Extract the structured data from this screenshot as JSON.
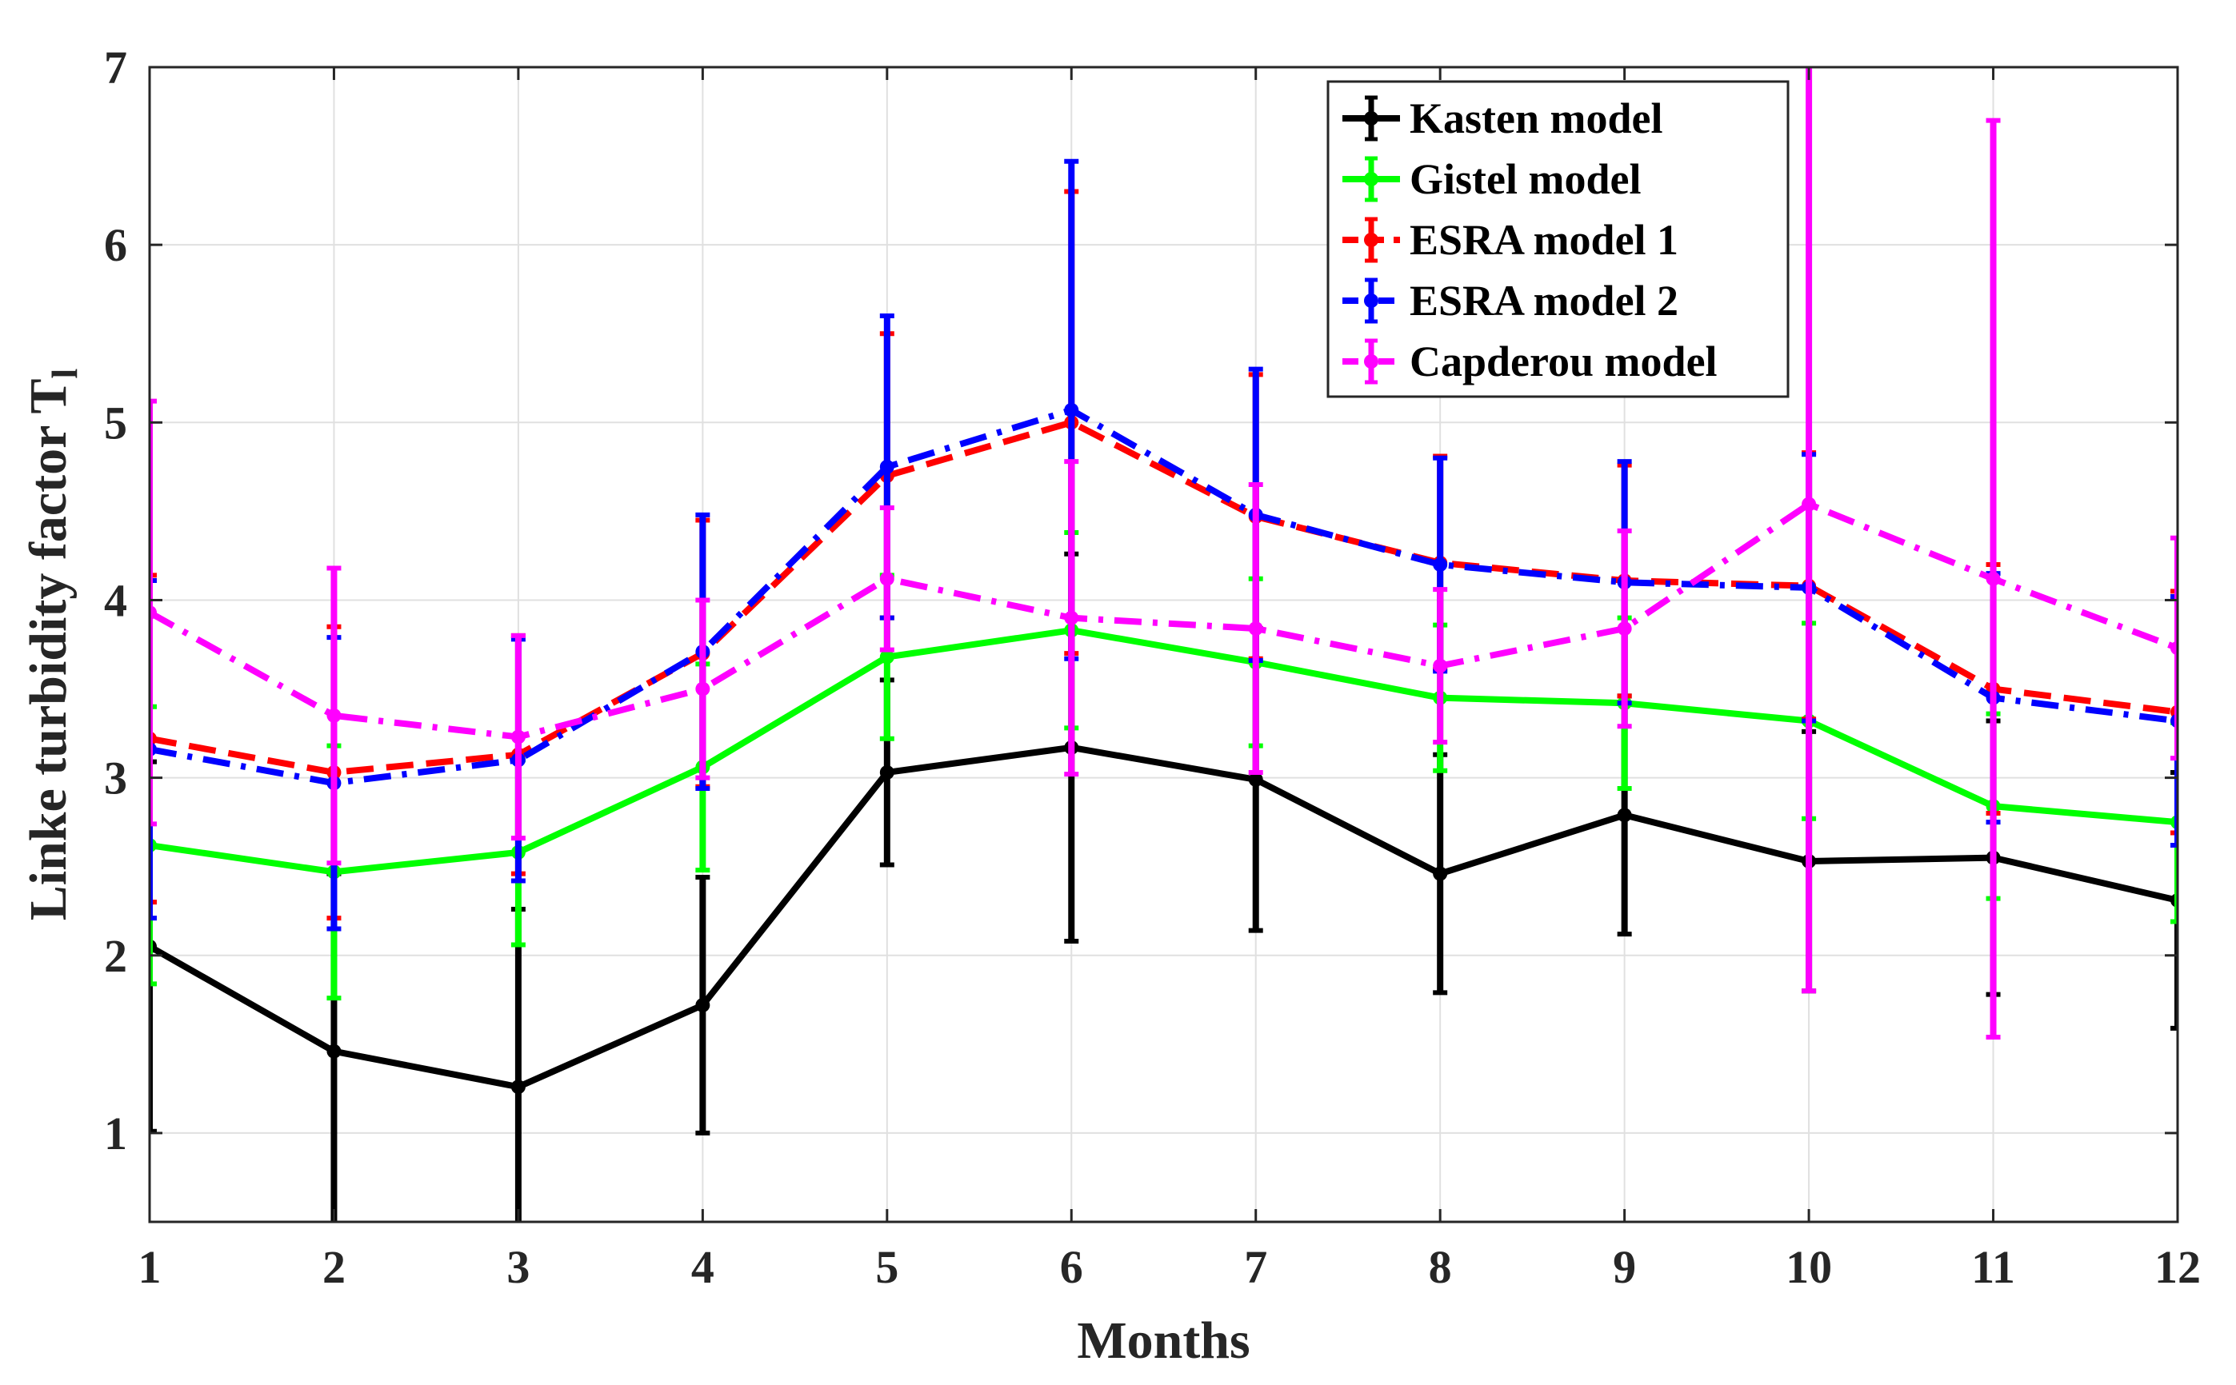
{
  "chart_data": {
    "type": "line",
    "xlabel": "Months",
    "ylabel": "Linke turbidity factor T",
    "ylabel_subscript": "l",
    "x": [
      1,
      2,
      3,
      4,
      5,
      6,
      7,
      8,
      9,
      10,
      11,
      12
    ],
    "xlim": [
      1,
      12
    ],
    "ylim": [
      0.5,
      7
    ],
    "yticks": [
      1,
      2,
      3,
      4,
      5,
      6,
      7
    ],
    "grid": true,
    "legend_position": "top-right",
    "series": [
      {
        "name": "Kasten model",
        "color": "#000000",
        "line_style": "solid",
        "values": [
          2.05,
          1.46,
          1.26,
          1.72,
          3.03,
          3.17,
          2.99,
          2.46,
          2.79,
          2.53,
          2.55,
          2.31
        ],
        "error": [
          1.04,
          1.0,
          1.0,
          0.72,
          0.52,
          1.09,
          0.85,
          0.67,
          0.67,
          0.73,
          0.77,
          0.72
        ]
      },
      {
        "name": "Gistel model",
        "color": "#00ff00",
        "line_style": "solid",
        "values": [
          2.62,
          2.47,
          2.58,
          3.06,
          3.68,
          3.83,
          3.65,
          3.45,
          3.42,
          3.32,
          2.84,
          2.75
        ],
        "error": [
          0.78,
          0.71,
          0.52,
          0.58,
          0.46,
          0.55,
          0.47,
          0.41,
          0.48,
          0.55,
          0.52,
          0.56
        ]
      },
      {
        "name": "ESRA model 1",
        "color": "#ff0000",
        "line_style": "dashed",
        "values": [
          3.22,
          3.03,
          3.13,
          3.7,
          4.7,
          5.0,
          4.47,
          4.21,
          4.11,
          4.08,
          3.5,
          3.37
        ],
        "error": [
          0.92,
          0.82,
          0.67,
          0.75,
          0.8,
          1.3,
          0.8,
          0.6,
          0.65,
          0.75,
          0.7,
          0.68
        ]
      },
      {
        "name": "ESRA model 2",
        "color": "#0000ff",
        "line_style": "dashdot",
        "values": [
          3.16,
          2.97,
          3.1,
          3.71,
          4.75,
          5.07,
          4.48,
          4.2,
          4.1,
          4.07,
          3.45,
          3.32
        ],
        "error": [
          0.95,
          0.82,
          0.68,
          0.77,
          0.85,
          1.4,
          0.82,
          0.6,
          0.68,
          0.75,
          0.7,
          0.7
        ]
      },
      {
        "name": "Capderou model",
        "color": "#ff00ff",
        "line_style": "dashdot",
        "values": [
          3.93,
          3.35,
          3.23,
          3.5,
          4.12,
          3.9,
          3.84,
          3.63,
          3.84,
          4.54,
          4.12,
          3.73
        ],
        "error": [
          1.19,
          0.83,
          0.57,
          0.5,
          0.4,
          0.88,
          0.81,
          0.43,
          0.55,
          2.74,
          2.58,
          0.62
        ]
      }
    ]
  }
}
